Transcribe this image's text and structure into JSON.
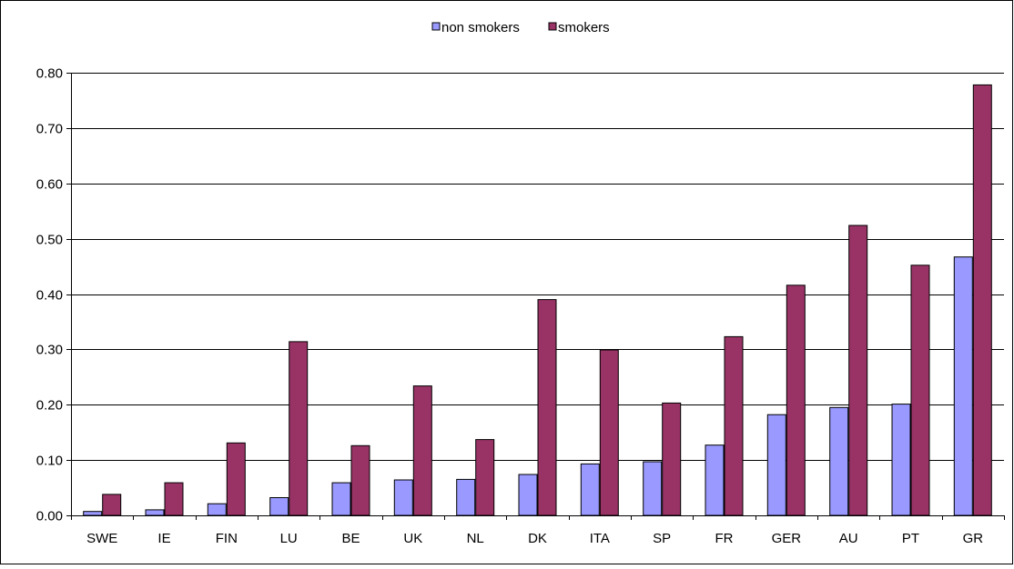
{
  "chart_data": {
    "type": "bar",
    "title": "",
    "xlabel": "",
    "ylabel": "",
    "categories": [
      "SWE",
      "IE",
      "FIN",
      "LU",
      "BE",
      "UK",
      "NL",
      "DK",
      "ITA",
      "SP",
      "FR",
      "GER",
      "AU",
      "PT",
      "GR"
    ],
    "series": [
      {
        "name": "non smokers",
        "color": "#9999ff",
        "values": [
          0.007,
          0.01,
          0.021,
          0.032,
          0.059,
          0.064,
          0.065,
          0.074,
          0.093,
          0.097,
          0.127,
          0.182,
          0.195,
          0.201,
          0.467
        ]
      },
      {
        "name": "smokers",
        "color": "#993366",
        "values": [
          0.038,
          0.059,
          0.131,
          0.314,
          0.126,
          0.234,
          0.137,
          0.39,
          0.299,
          0.203,
          0.323,
          0.416,
          0.524,
          0.452,
          0.778
        ]
      }
    ],
    "ylim": [
      0,
      0.8
    ],
    "yticks": [
      "0.00",
      "0.10",
      "0.20",
      "0.30",
      "0.40",
      "0.50",
      "0.60",
      "0.70",
      "0.80"
    ],
    "grid": true,
    "legend_position": "top-center"
  }
}
